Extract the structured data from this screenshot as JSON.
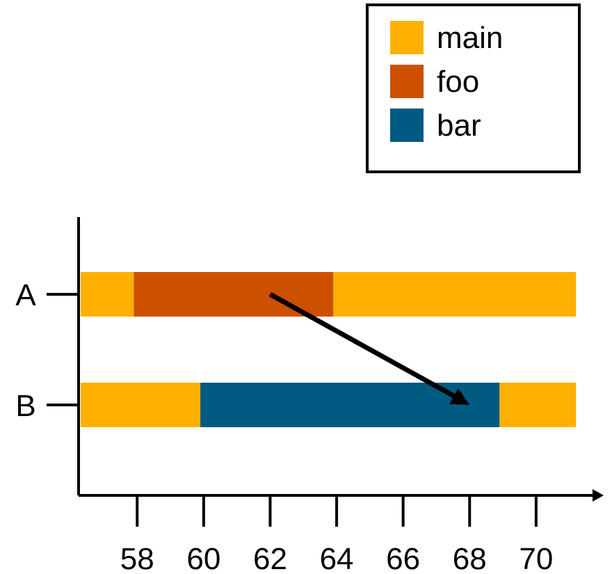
{
  "chart_data": {
    "type": "bar",
    "orientation": "horizontal-timeline",
    "categories": [
      "A",
      "B"
    ],
    "x_ticks": [
      58,
      60,
      62,
      64,
      66,
      68,
      70
    ],
    "xlim": [
      56.3,
      71.3
    ],
    "segments": [
      {
        "row": "A",
        "series": "main",
        "start": 56.3,
        "end": 57.9
      },
      {
        "row": "A",
        "series": "foo",
        "start": 57.9,
        "end": 63.9
      },
      {
        "row": "A",
        "series": "main",
        "start": 63.9,
        "end": 71.2
      },
      {
        "row": "B",
        "series": "main",
        "start": 56.3,
        "end": 59.9
      },
      {
        "row": "B",
        "series": "bar",
        "start": 59.9,
        "end": 68.9
      },
      {
        "row": "B",
        "series": "main",
        "start": 68.9,
        "end": 71.2
      }
    ],
    "series": [
      {
        "name": "main",
        "color": "#ffb000"
      },
      {
        "name": "foo",
        "color": "#cc5000"
      },
      {
        "name": "bar",
        "color": "#005a82"
      }
    ],
    "annotations": [
      {
        "type": "arrow",
        "from": {
          "x": 62,
          "row": "A"
        },
        "to": {
          "x": 68,
          "row": "B"
        }
      }
    ],
    "legend": {
      "position": "top-right"
    },
    "grid": false
  }
}
